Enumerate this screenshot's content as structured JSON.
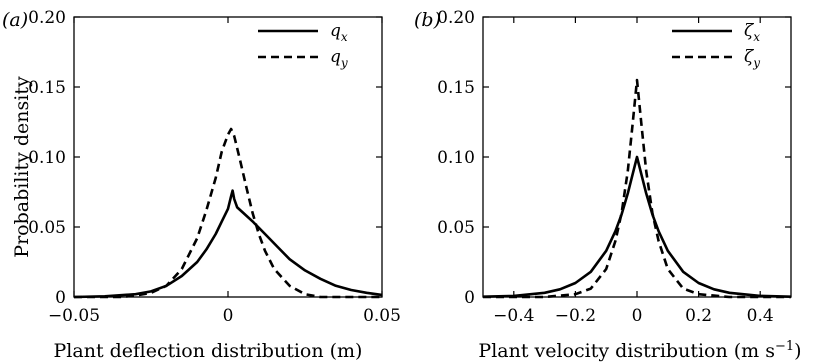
{
  "chart_data": [
    {
      "type": "line",
      "panel_label": "(a)",
      "xlabel": "Plant deflection distribution (m)",
      "ylabel": "Probability density",
      "xlim": [
        -0.05,
        0.05
      ],
      "ylim": [
        0,
        0.2
      ],
      "xticks": [
        "−0.05",
        "0",
        "0.05"
      ],
      "yticks": [
        "0",
        "0.05",
        "0.10",
        "0.15",
        "0.20"
      ],
      "legend_position": "top-right",
      "series": [
        {
          "name": "q",
          "subscript": "x",
          "style": "solid",
          "color": "#000000",
          "x": [
            -0.05,
            -0.04,
            -0.03,
            -0.025,
            -0.02,
            -0.015,
            -0.01,
            -0.007,
            -0.004,
            -0.002,
            0,
            0.001,
            0.0015,
            0.002,
            0.003,
            0.005,
            0.008,
            0.012,
            0.016,
            0.02,
            0.025,
            0.03,
            0.035,
            0.04,
            0.045,
            0.05
          ],
          "values": [
            0,
            0.0005,
            0.002,
            0.004,
            0.008,
            0.015,
            0.025,
            0.034,
            0.045,
            0.054,
            0.063,
            0.072,
            0.076,
            0.07,
            0.064,
            0.06,
            0.054,
            0.045,
            0.036,
            0.027,
            0.019,
            0.013,
            0.008,
            0.005,
            0.003,
            0.0015
          ]
        },
        {
          "name": "q",
          "subscript": "y",
          "style": "dashed",
          "color": "#000000",
          "x": [
            -0.05,
            -0.035,
            -0.03,
            -0.025,
            -0.02,
            -0.015,
            -0.01,
            -0.007,
            -0.004,
            -0.002,
            0,
            0.001,
            0.002,
            0.004,
            0.006,
            0.008,
            0.01,
            0.012,
            0.015,
            0.02,
            0.025,
            0.03,
            0.05
          ],
          "values": [
            0,
            0,
            0.001,
            0.003,
            0.008,
            0.02,
            0.042,
            0.062,
            0.085,
            0.104,
            0.116,
            0.12,
            0.115,
            0.097,
            0.078,
            0.06,
            0.045,
            0.033,
            0.02,
            0.008,
            0.002,
            0,
            0
          ]
        }
      ]
    },
    {
      "type": "line",
      "panel_label": "(b)",
      "xlabel": "Plant velocity distribution (m s",
      "xlabel_sup": "−1",
      "xlabel_end": ")",
      "ylabel": "",
      "xlim": [
        -0.5,
        0.5
      ],
      "ylim": [
        0,
        0.2
      ],
      "xticks": [
        "−0.4",
        "−0.2",
        "0",
        "0.2",
        "0.4"
      ],
      "yticks": [
        "0",
        "0.05",
        "0.10",
        "0.15",
        "0.20"
      ],
      "legend_position": "top-right",
      "series": [
        {
          "name": "ζ",
          "subscript": "x",
          "style": "solid",
          "color": "#000000",
          "x": [
            -0.5,
            -0.4,
            -0.3,
            -0.25,
            -0.2,
            -0.15,
            -0.1,
            -0.07,
            -0.05,
            -0.03,
            -0.015,
            0,
            0.015,
            0.03,
            0.05,
            0.07,
            0.1,
            0.15,
            0.2,
            0.25,
            0.3,
            0.4,
            0.5
          ],
          "values": [
            0.0002,
            0.0008,
            0.003,
            0.0055,
            0.01,
            0.018,
            0.033,
            0.047,
            0.059,
            0.074,
            0.087,
            0.1,
            0.087,
            0.074,
            0.059,
            0.047,
            0.033,
            0.018,
            0.01,
            0.0055,
            0.003,
            0.0008,
            0.0002
          ]
        },
        {
          "name": "ζ",
          "subscript": "y",
          "style": "dashed",
          "color": "#000000",
          "x": [
            -0.5,
            -0.3,
            -0.2,
            -0.15,
            -0.1,
            -0.07,
            -0.05,
            -0.03,
            -0.015,
            0,
            0.015,
            0.03,
            0.05,
            0.07,
            0.1,
            0.15,
            0.2,
            0.3,
            0.5
          ],
          "values": [
            0,
            0,
            0.002,
            0.006,
            0.02,
            0.04,
            0.06,
            0.09,
            0.122,
            0.155,
            0.122,
            0.09,
            0.06,
            0.04,
            0.02,
            0.006,
            0.002,
            0,
            0
          ]
        }
      ]
    }
  ]
}
